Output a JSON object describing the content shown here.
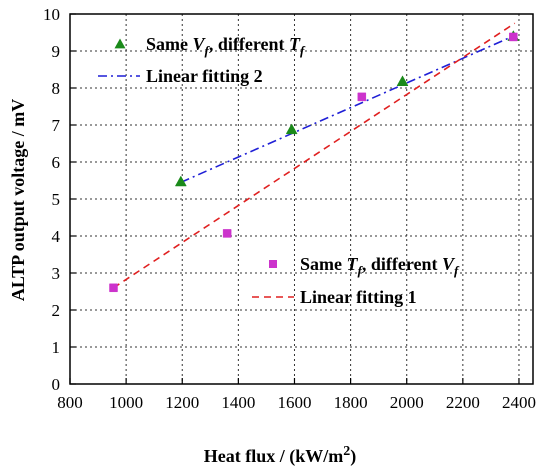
{
  "chart_data": {
    "type": "scatter",
    "xlabel_prefix": "Heat flux / (kW/m",
    "xlabel_sup": "2",
    "xlabel_suffix": ")",
    "ylabel": "ALTP output voltage / mV",
    "xlim": [
      800,
      2450
    ],
    "ylim": [
      0,
      10
    ],
    "xticks": [
      "800",
      "1000",
      "1200",
      "1400",
      "1600",
      "1800",
      "2000",
      "2200",
      "2400"
    ],
    "yticks": [
      "0",
      "1",
      "2",
      "3",
      "4",
      "5",
      "6",
      "7",
      "8",
      "9",
      "10"
    ],
    "grid": true,
    "series": [
      {
        "name_parts": [
          "Same ",
          "V",
          "f",
          ", different ",
          "T",
          "f"
        ],
        "marker": "triangle",
        "color": "#1a8a1a",
        "points": [
          [
            1195,
            5.47
          ],
          [
            1590,
            6.88
          ],
          [
            1985,
            8.18
          ],
          [
            2380,
            9.4
          ]
        ]
      },
      {
        "name_parts": [
          "Same ",
          "T",
          "f",
          ", different ",
          "V",
          "f"
        ],
        "marker": "square",
        "color": "#cc33cc",
        "points": [
          [
            955,
            2.6
          ],
          [
            1360,
            4.07
          ],
          [
            1840,
            7.76
          ],
          [
            2380,
            9.38
          ]
        ]
      }
    ],
    "fits": [
      {
        "name": "Linear fitting 2",
        "style": "dash-dot",
        "color": "#1f1fd6",
        "x": [
          1195,
          2385
        ],
        "y": [
          5.45,
          9.42
        ]
      },
      {
        "name": "Linear fitting 1",
        "style": "dashed",
        "color": "#e02020",
        "x": [
          955,
          2385
        ],
        "y": [
          2.6,
          9.75
        ]
      }
    ]
  }
}
